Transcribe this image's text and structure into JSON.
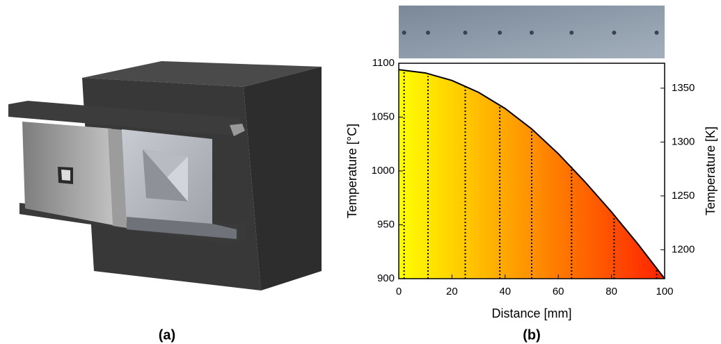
{
  "panel_a_label": "(a)",
  "chart_data": {
    "type": "line",
    "panel_label": "(b)",
    "x_label": "Distance [mm]",
    "y_label": "Temperature [°C]",
    "y2_label": "Temperature [K]",
    "x": [
      0,
      10,
      20,
      30,
      40,
      50,
      60,
      70,
      80,
      90,
      100
    ],
    "values": [
      1094,
      1091,
      1084,
      1073,
      1058,
      1039,
      1016,
      990,
      962,
      932,
      900
    ],
    "color": "#000000",
    "marker_x": [
      2,
      11,
      25,
      38,
      50,
      65,
      81,
      97
    ],
    "marker_values": [
      1092,
      1088,
      1079,
      1061,
      1037,
      1004,
      960,
      910
    ],
    "xlim": [
      0,
      100
    ],
    "xticks": [
      0,
      20,
      40,
      60,
      80,
      100
    ],
    "ylim": [
      900,
      1100
    ],
    "yticks": [
      900,
      950,
      1000,
      1050,
      1100
    ],
    "y2lim": [
      1173.15,
      1373.15
    ],
    "y2ticks": [
      1200,
      1250,
      1300,
      1350
    ],
    "fill_colors": [
      "#ffff00",
      "#ff2200"
    ]
  }
}
